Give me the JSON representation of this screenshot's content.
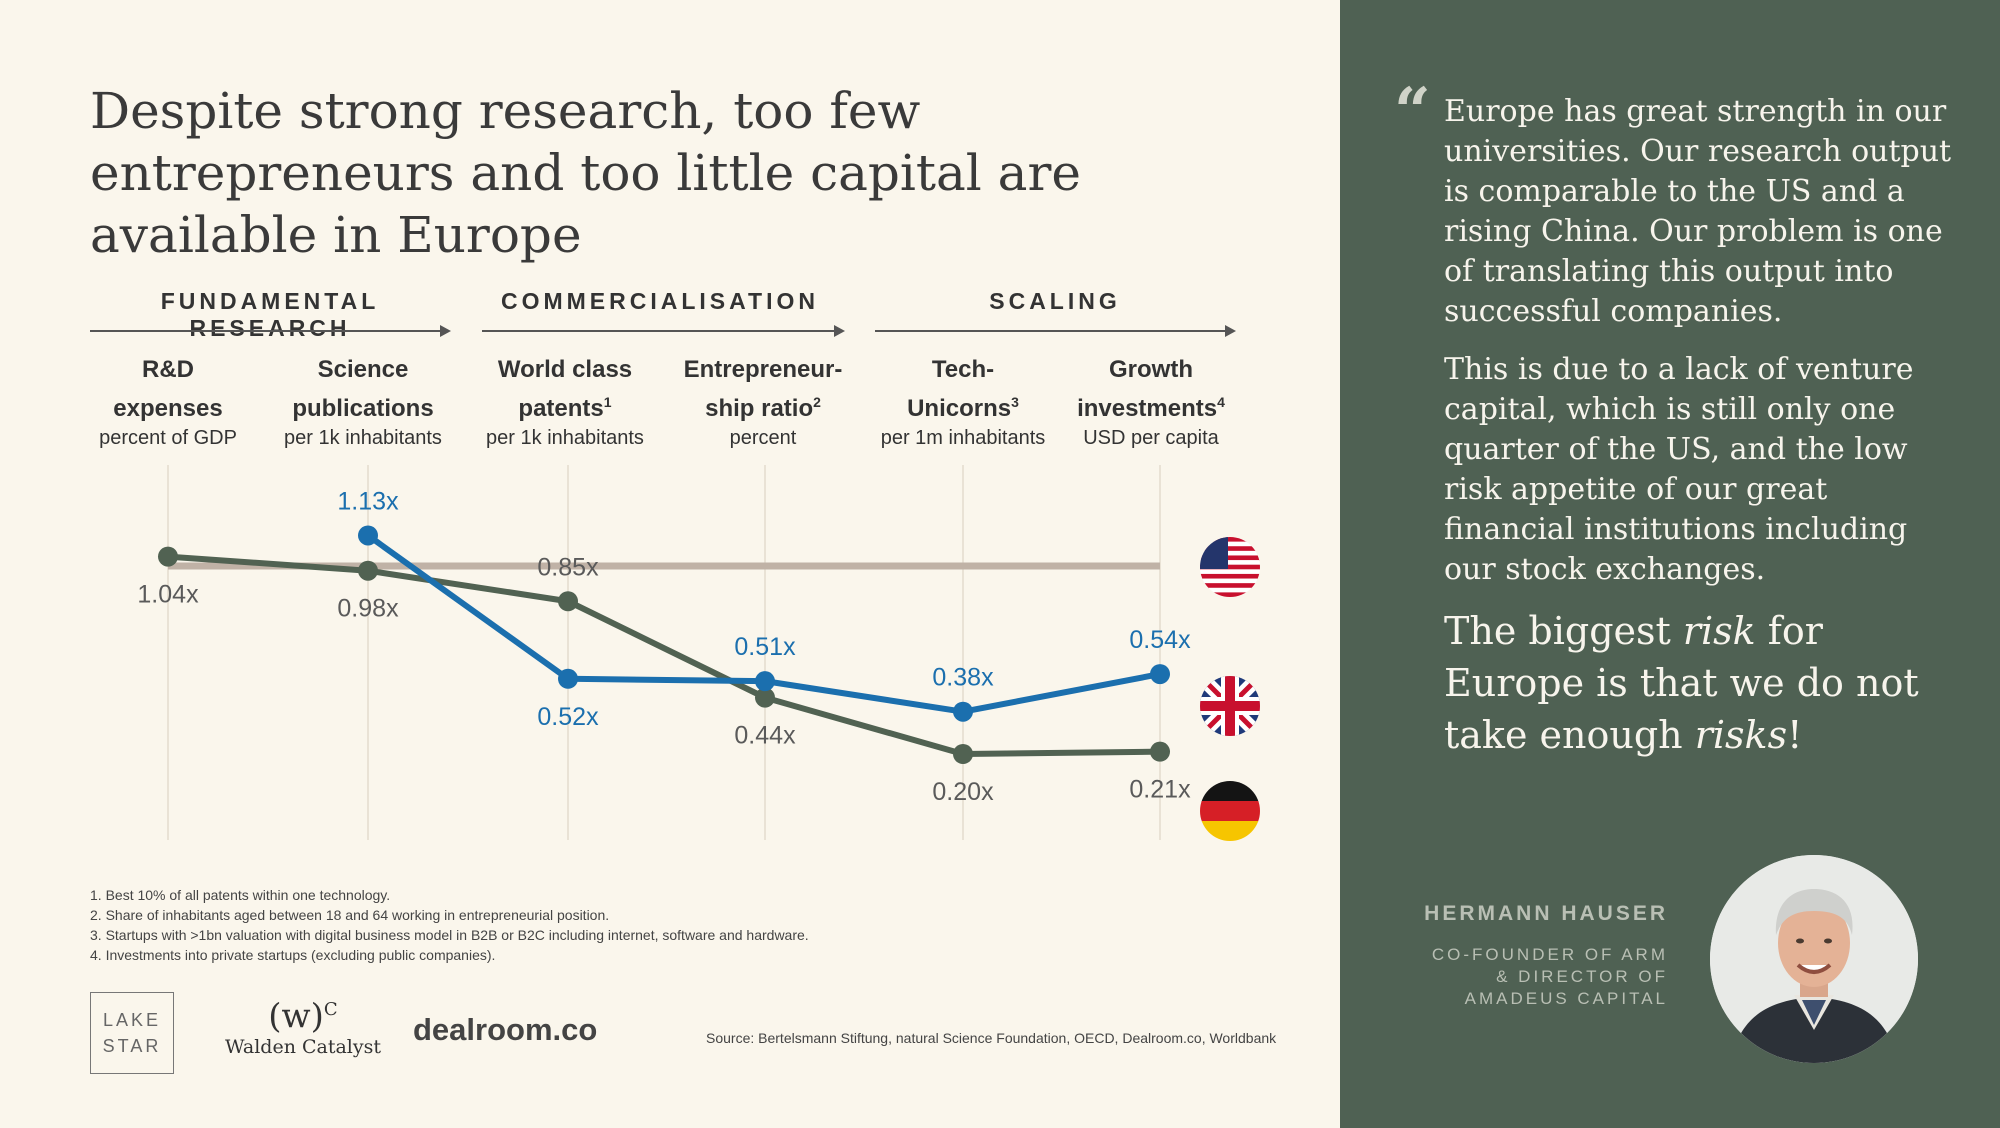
{
  "title": "Despite strong research, too few entrepreneurs and too little capital are available in Europe",
  "stages": [
    "FUNDAMENTAL RESEARCH",
    "COMMERCIALISATION",
    "SCALING"
  ],
  "metrics": [
    {
      "name": "R&D\nexpenses",
      "sup": "",
      "unit": "percent of GDP"
    },
    {
      "name": "Science\npublications",
      "sup": "",
      "unit": "per 1k inhabitants"
    },
    {
      "name": "World class\npatents",
      "sup": "1",
      "unit": "per 1k inhabitants"
    },
    {
      "name": "Entrepreneur-\nship ratio",
      "sup": "2",
      "unit": "percent"
    },
    {
      "name": "Tech-\nUnicorns",
      "sup": "3",
      "unit": "per 1m inhabitants"
    },
    {
      "name": "Growth\ninvestments",
      "sup": "4",
      "unit": "USD per capita"
    }
  ],
  "chart_data": {
    "type": "line",
    "categories": [
      "R&D expenses",
      "Science publications",
      "World class patents",
      "Entrepreneurship ratio",
      "Tech-Unicorns",
      "Growth investments"
    ],
    "reference": {
      "name": "US",
      "value": 1.0
    },
    "series": [
      {
        "name": "UK",
        "color": "#1b6fae",
        "values": [
          null,
          1.13,
          0.52,
          0.51,
          0.38,
          0.54
        ],
        "labels": [
          "",
          "1.13x",
          "0.52x",
          "0.51x",
          "0.38x",
          "0.54x"
        ]
      },
      {
        "name": "Germany",
        "color": "#516252",
        "values": [
          1.04,
          0.98,
          0.85,
          0.44,
          0.2,
          0.21
        ],
        "labels": [
          "1.04x",
          "0.98x",
          "0.85x",
          "0.44x",
          "0.20x",
          "0.21x"
        ]
      }
    ],
    "flags": [
      "us-flag",
      "uk-flag",
      "germany-flag"
    ],
    "reference_color": "#c0b2a6"
  },
  "footnotes": [
    "1.  Best 10% of all patents within one technology.",
    "2.  Share of inhabitants aged between 18 and 64 working in entrepreneurial position.",
    "3.  Startups with >1bn valuation with digital business model in B2B or B2C including internet, software and hardware.",
    "4.  Investments into private startups (excluding public companies)."
  ],
  "logos": {
    "lakestar_line1": "LAKE",
    "lakestar_line2": "STAR",
    "walden_mark": "(w)",
    "walden_sup": "C",
    "walden_name": "Walden Catalyst",
    "dealroom": "dealroom.co"
  },
  "source": "Source: Bertelsmann Stiftung, natural Science Foundation, OECD, Dealroom.co, Worldbank",
  "quote": {
    "mark": "“",
    "p1": "Europe has great strength in our universities. Our research output is comparable to the US and a rising China. Our problem is one of translating this output into successful companies.",
    "p2": "This is due to a lack of venture capital, which is still only one quarter of the US, and the low risk appetite of our great financial institutions including our stock exchanges.",
    "p3_a": "The biggest ",
    "p3_b": "risk",
    "p3_c": " for Europe is that we do not take enough ",
    "p3_d": "risks",
    "p3_e": "!"
  },
  "author": {
    "name": "HERMANN HAUSER",
    "role": "CO-FOUNDER OF ARM\n& DIRECTOR OF\nAMADEUS CAPITAL"
  }
}
